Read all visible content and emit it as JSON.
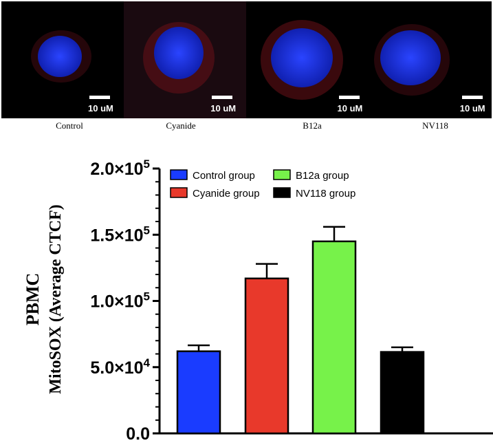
{
  "panels": [
    {
      "caption": "Control",
      "scale_label": "10 uM"
    },
    {
      "caption": "Cyanide",
      "scale_label": "10 uM"
    },
    {
      "caption": "B12a",
      "scale_label": "10 uM"
    },
    {
      "caption": "NV118",
      "scale_label": "10 uM"
    }
  ],
  "chart_data": {
    "type": "bar",
    "ylabel_line1": "PBMC",
    "ylabel_line2": "MitoSOX (Average CTCF)",
    "ylim": [
      0,
      200000
    ],
    "yticks": [
      {
        "value": 0,
        "mantissa": "0.0",
        "exponent": ""
      },
      {
        "value": 50000,
        "mantissa": "5.0×10",
        "exponent": "4"
      },
      {
        "value": 100000,
        "mantissa": "1.0×10",
        "exponent": "5"
      },
      {
        "value": 150000,
        "mantissa": "1.5×10",
        "exponent": "5"
      },
      {
        "value": 200000,
        "mantissa": "2.0×10",
        "exponent": "5"
      }
    ],
    "series": [
      {
        "name": "Control group",
        "value": 62000,
        "error": 4500,
        "color": "#1a3cff"
      },
      {
        "name": "Cyanide group",
        "value": 117000,
        "error": 11000,
        "color": "#e8392b"
      },
      {
        "name": "B12a group",
        "value": 145000,
        "error": 11000,
        "color": "#77f24a"
      },
      {
        "name": "NV118 group",
        "value": 61500,
        "error": 3500,
        "color": "#000000"
      }
    ],
    "legend_position": "top-left"
  }
}
